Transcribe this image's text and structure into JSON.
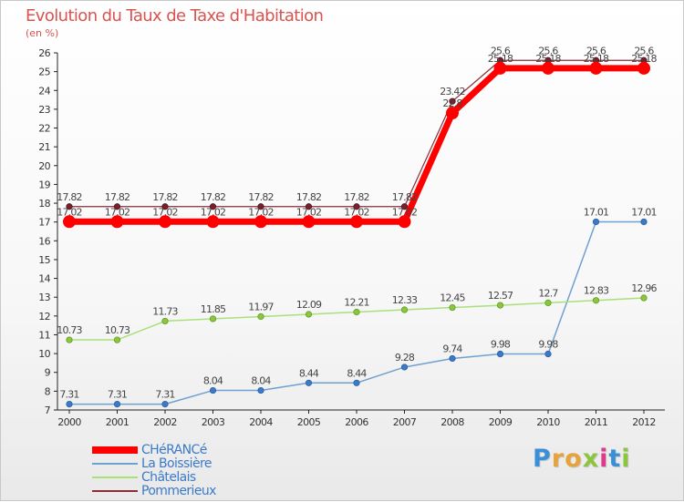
{
  "title": "Evolution du Taux de Taxe d'Habitation",
  "unit": "(en %)",
  "brand": {
    "text": "Proxiti",
    "letters": [
      {
        "ch": "P",
        "color": "#3b8fd6"
      },
      {
        "ch": "r",
        "color": "#e8a23a"
      },
      {
        "ch": "o",
        "color": "#e8a23a"
      },
      {
        "ch": "x",
        "color": "#8cc63f"
      },
      {
        "ch": "i",
        "color": "#e03a8a"
      },
      {
        "ch": "t",
        "color": "#3b8fd6"
      },
      {
        "ch": "i",
        "color": "#8cc63f"
      }
    ]
  },
  "chart_data": {
    "type": "line",
    "x": [
      "2000",
      "2001",
      "2002",
      "2003",
      "2004",
      "2005",
      "2006",
      "2007",
      "2008",
      "2009",
      "2010",
      "2011",
      "2012"
    ],
    "ylim": [
      7,
      26
    ],
    "yticks": [
      7,
      8,
      9,
      10,
      11,
      12,
      13,
      14,
      15,
      16,
      17,
      18,
      19,
      20,
      21,
      22,
      23,
      24,
      25,
      26
    ],
    "grid": false,
    "legend_position": "bottom-left",
    "series": [
      {
        "name": "CHéRANCé",
        "color": "#ff0000",
        "values": [
          17.02,
          17.02,
          17.02,
          17.02,
          17.02,
          17.02,
          17.02,
          17.02,
          22.8,
          25.18,
          25.18,
          25.18,
          25.18
        ],
        "labels": [
          "17.02",
          "17.02",
          "17.02",
          "17.02",
          "17.02",
          "17.02",
          "17.02",
          "17.02",
          "22.8",
          "25.18",
          "25.18",
          "25.18",
          "25.18"
        ]
      },
      {
        "name": "La Boissière",
        "color": "#6fa0cf",
        "values": [
          7.31,
          7.31,
          7.31,
          8.04,
          8.04,
          8.44,
          8.44,
          9.28,
          9.74,
          9.98,
          9.98,
          17.01,
          17.01
        ],
        "labels": [
          "7.31",
          "7.31",
          "7.31",
          "8.04",
          "8.04",
          "8.44",
          "8.44",
          "9.28",
          "9.74",
          "9.98",
          "9.98",
          "17.01",
          "17.01"
        ]
      },
      {
        "name": "Châtelais",
        "color": "#a8e07a",
        "values": [
          10.73,
          10.73,
          11.73,
          11.85,
          11.97,
          12.09,
          12.21,
          12.33,
          12.45,
          12.57,
          12.7,
          12.83,
          12.96
        ],
        "labels": [
          "10.73",
          "10.73",
          "11.73",
          "11.85",
          "11.97",
          "12.09",
          "12.21",
          "12.33",
          "12.45",
          "12.57",
          "12.7",
          "12.83",
          "12.96"
        ]
      },
      {
        "name": "Pommerieux",
        "color": "#8b2e3a",
        "values": [
          17.82,
          17.82,
          17.82,
          17.82,
          17.82,
          17.82,
          17.82,
          17.82,
          23.42,
          25.6,
          25.6,
          25.6,
          25.6
        ],
        "labels": [
          "17.82",
          "17.82",
          "17.82",
          "17.82",
          "17.82",
          "17.82",
          "17.82",
          "17.82",
          "23.42",
          "25.6",
          "25.6",
          "25.6",
          "25.6"
        ]
      }
    ]
  }
}
